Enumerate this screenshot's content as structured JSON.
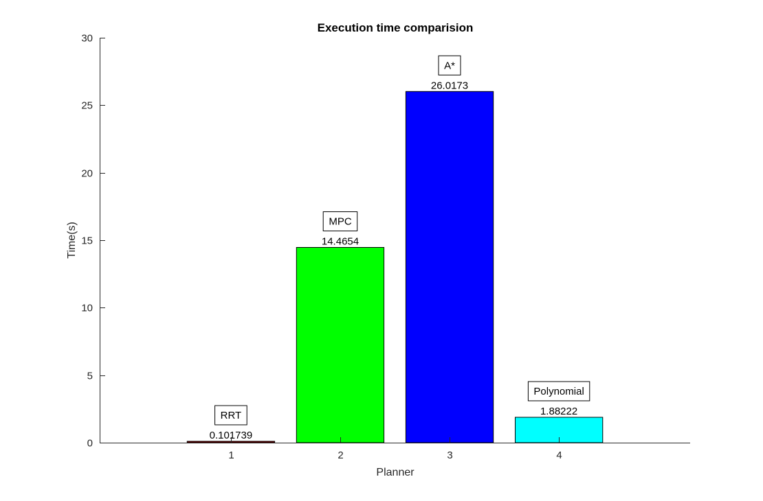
{
  "chart_data": {
    "type": "bar",
    "title": "Execution time comparision",
    "xlabel": "Planner",
    "ylabel": "Time(s)",
    "categories": [
      "1",
      "2",
      "3",
      "4"
    ],
    "x": [
      1,
      2,
      3,
      4
    ],
    "values": [
      0.101739,
      14.4654,
      26.0173,
      1.88222
    ],
    "value_labels": [
      "0.101739",
      "14.4654",
      "26.0173",
      "1.88222"
    ],
    "bar_names": [
      "RRT",
      "MPC",
      "A*",
      "Polynomial"
    ],
    "colors": [
      "#800000",
      "#00ff00",
      "#0000ff",
      "#00ffff"
    ],
    "xlim": [
      -0.2,
      5.2
    ],
    "ylim": [
      0,
      30
    ],
    "yticks": [
      0,
      5,
      10,
      15,
      20,
      25,
      30
    ],
    "grid": false,
    "legend": "none"
  }
}
